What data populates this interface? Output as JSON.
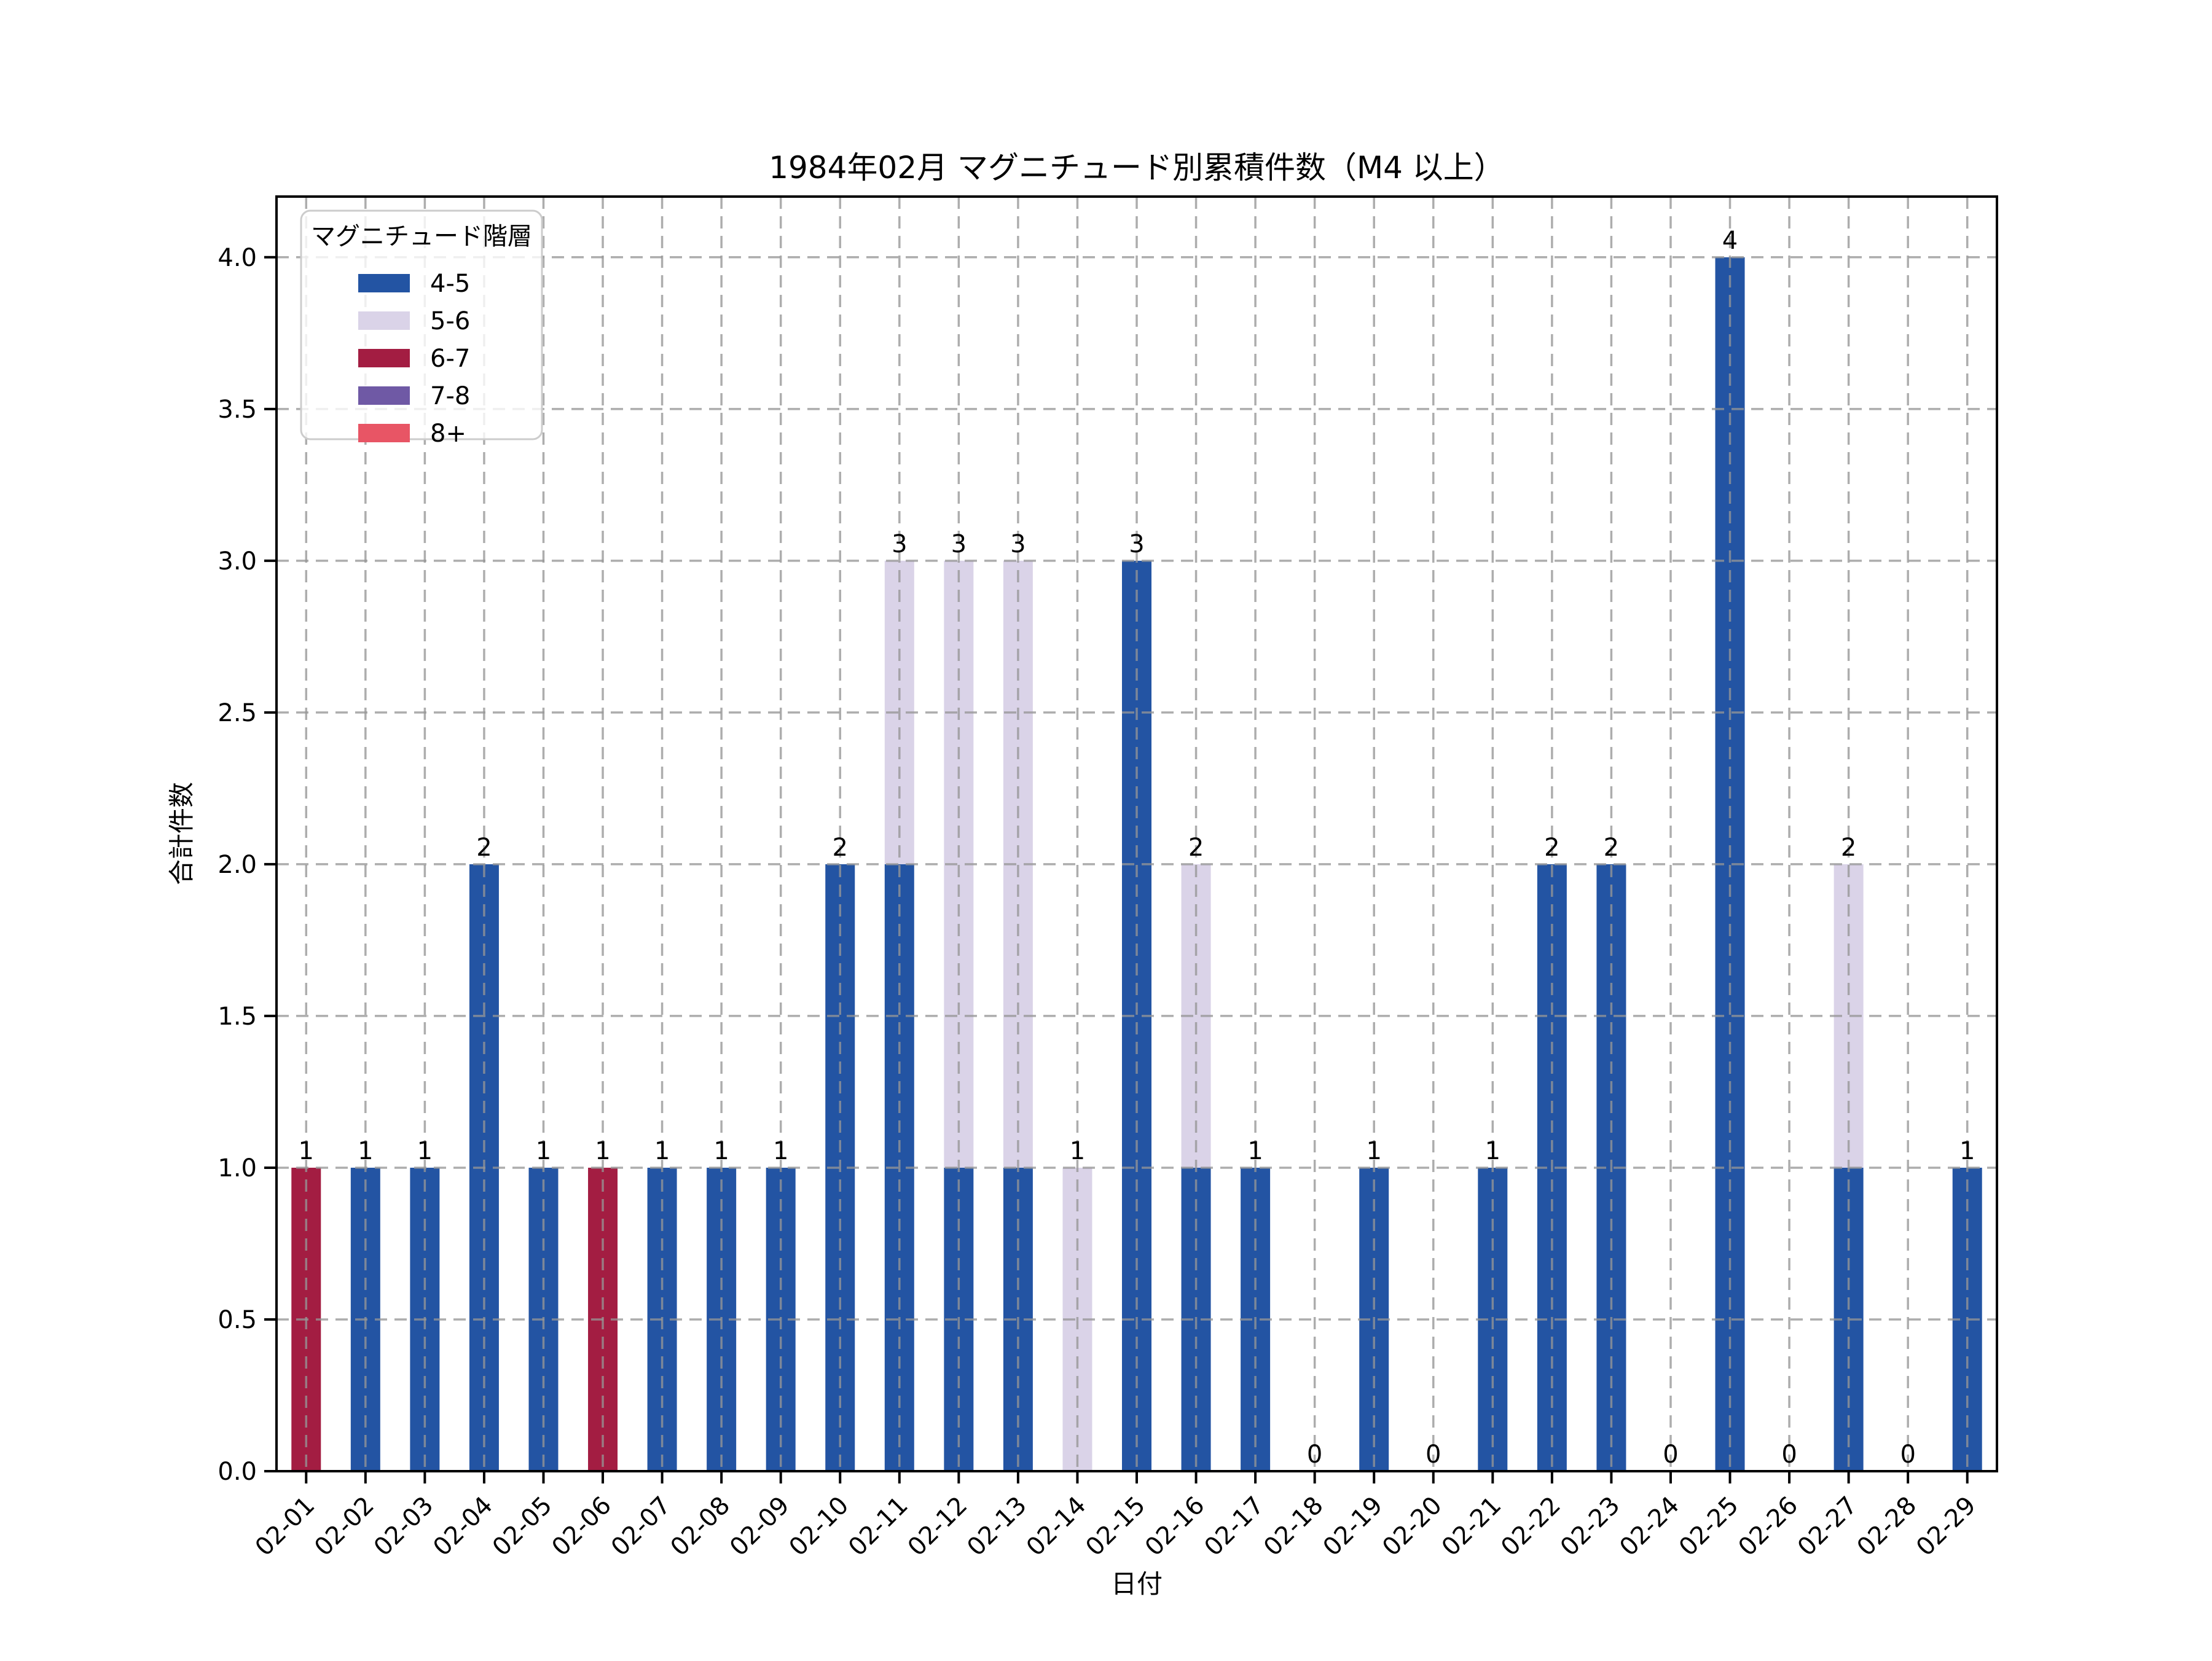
{
  "title": "1984年02月 マグニチュード別累積件数（M4 以上）",
  "xlabel": "日付",
  "ylabel": "合計件数",
  "legend": {
    "title": "マグニチュード階層",
    "items": [
      {
        "label": "4-5",
        "color": "#2354A3"
      },
      {
        "label": "5-6",
        "color": "#DAD3E8"
      },
      {
        "label": "6-7",
        "color": "#A31D42"
      },
      {
        "label": "7-8",
        "color": "#6F59A5"
      },
      {
        "label": "8+",
        "color": "#E85565"
      }
    ]
  },
  "chart_data": {
    "type": "bar",
    "stacked": true,
    "title": "1984年02月 マグニチュード別累積件数（M4 以上）",
    "xlabel": "日付",
    "ylabel": "合計件数",
    "categories": [
      "02-01",
      "02-02",
      "02-03",
      "02-04",
      "02-05",
      "02-06",
      "02-07",
      "02-08",
      "02-09",
      "02-10",
      "02-11",
      "02-12",
      "02-13",
      "02-14",
      "02-15",
      "02-16",
      "02-17",
      "02-18",
      "02-19",
      "02-20",
      "02-21",
      "02-22",
      "02-23",
      "02-24",
      "02-25",
      "02-26",
      "02-27",
      "02-28",
      "02-29"
    ],
    "series": [
      {
        "name": "4-5",
        "color": "#2354A3",
        "values": [
          0,
          1,
          1,
          2,
          1,
          0,
          1,
          1,
          1,
          2,
          2,
          1,
          1,
          0,
          3,
          1,
          1,
          0,
          1,
          0,
          1,
          2,
          2,
          0,
          4,
          0,
          1,
          0,
          1
        ]
      },
      {
        "name": "5-6",
        "color": "#DAD3E8",
        "values": [
          0,
          0,
          0,
          0,
          0,
          0,
          0,
          0,
          0,
          0,
          1,
          2,
          2,
          1,
          0,
          1,
          0,
          0,
          0,
          0,
          0,
          0,
          0,
          0,
          0,
          0,
          1,
          0,
          0
        ]
      },
      {
        "name": "6-7",
        "color": "#A31D42",
        "values": [
          1,
          0,
          0,
          0,
          0,
          1,
          0,
          0,
          0,
          0,
          0,
          0,
          0,
          0,
          0,
          0,
          0,
          0,
          0,
          0,
          0,
          0,
          0,
          0,
          0,
          0,
          0,
          0,
          0
        ]
      },
      {
        "name": "7-8",
        "color": "#6F59A5",
        "values": [
          0,
          0,
          0,
          0,
          0,
          0,
          0,
          0,
          0,
          0,
          0,
          0,
          0,
          0,
          0,
          0,
          0,
          0,
          0,
          0,
          0,
          0,
          0,
          0,
          0,
          0,
          0,
          0,
          0
        ]
      },
      {
        "name": "8+",
        "color": "#E85565",
        "values": [
          0,
          0,
          0,
          0,
          0,
          0,
          0,
          0,
          0,
          0,
          0,
          0,
          0,
          0,
          0,
          0,
          0,
          0,
          0,
          0,
          0,
          0,
          0,
          0,
          0,
          0,
          0,
          0,
          0
        ]
      }
    ],
    "totals": [
      1,
      1,
      1,
      2,
      1,
      1,
      1,
      1,
      1,
      2,
      3,
      3,
      3,
      1,
      3,
      2,
      1,
      0,
      1,
      0,
      1,
      2,
      2,
      0,
      4,
      0,
      2,
      0,
      1
    ],
    "ylim": [
      0,
      4.2
    ],
    "yticks": [
      0.0,
      0.5,
      1.0,
      1.5,
      2.0,
      2.5,
      3.0,
      3.5,
      4.0
    ],
    "grid": true,
    "grid_style": "dashed",
    "legend_position": "upper left",
    "legend_title": "マグニチュード階層"
  }
}
